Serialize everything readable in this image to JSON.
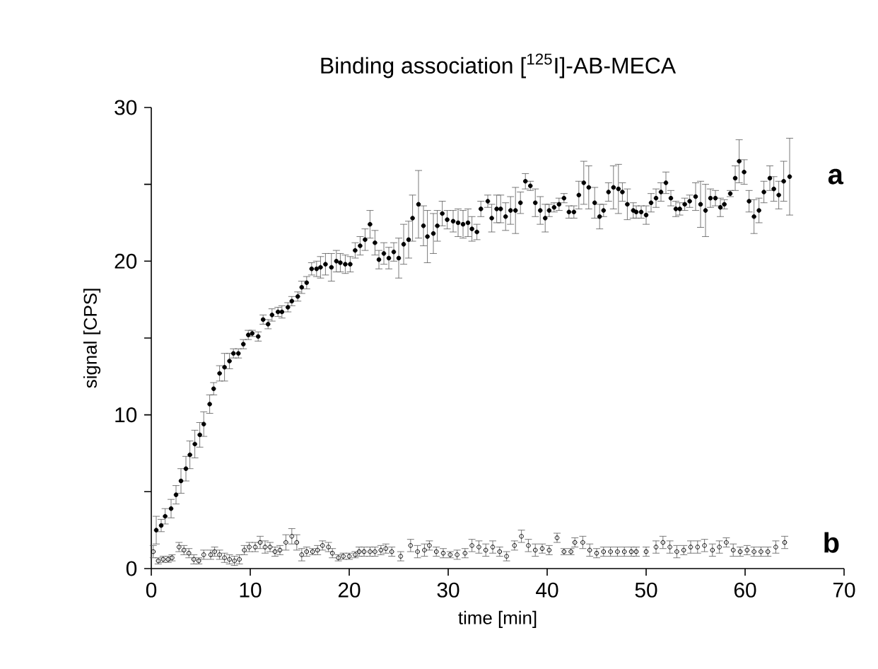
{
  "chart_data": {
    "type": "scatter",
    "title": "Binding association [$^{125}$I]-AB-MECA",
    "xlabel": "time [min]",
    "ylabel": "signal [CPS]",
    "xlim": [
      0,
      70
    ],
    "ylim": [
      0,
      30
    ],
    "xticks": [
      0,
      10,
      20,
      30,
      40,
      50,
      60,
      70
    ],
    "yticks": [
      0,
      {
        "value": 5,
        "label": null
      },
      10,
      {
        "value": 15,
        "label": null
      },
      20,
      {
        "value": 25,
        "label": null
      },
      30
    ],
    "marker": "circle",
    "grid": false,
    "legend": false,
    "series": [
      {
        "name": "a",
        "color": "#000000",
        "x": [
          0.5,
          1,
          1.4,
          2,
          2.5,
          3,
          3.5,
          3.9,
          4.4,
          4.9,
          5.3,
          5.9,
          6.3,
          6.9,
          7.4,
          7.9,
          8.3,
          8.8,
          9.3,
          9.8,
          10.2,
          10.8,
          11.3,
          11.8,
          12.2,
          12.8,
          13.2,
          13.8,
          14.2,
          14.8,
          15.2,
          15.7,
          16.2,
          16.7,
          17.1,
          17.6,
          18.2,
          18.7,
          19.1,
          19.6,
          20.1,
          20.6,
          21.1,
          21.6,
          22.1,
          22.6,
          23,
          23.5,
          24,
          24.5,
          25,
          25.5,
          26,
          26.4,
          27,
          27.5,
          27.9,
          28.5,
          28.9,
          29.4,
          29.9,
          30.5,
          31,
          31.5,
          32,
          32.4,
          32.9,
          33.3,
          34,
          34.4,
          34.9,
          35.3,
          35.8,
          36.3,
          36.8,
          37.3,
          37.8,
          38.3,
          38.8,
          39.3,
          39.8,
          40.2,
          40.7,
          41.2,
          41.7,
          42.2,
          42.7,
          43.2,
          43.7,
          44.2,
          44.8,
          45.3,
          45.7,
          46.2,
          46.7,
          47.2,
          47.6,
          48.1,
          48.7,
          49,
          49.5,
          50,
          50.5,
          51,
          51.5,
          52,
          52.5,
          53,
          53.4,
          53.9,
          54.4,
          55,
          55.5,
          56,
          56.5,
          57,
          57.5,
          57.9,
          58.5,
          59,
          59.4,
          59.9,
          60.4,
          60.9,
          61.4,
          61.9,
          62.5,
          62.9,
          63.4,
          63.9,
          64.5
        ],
        "values": [
          2.5,
          2.8,
          3.4,
          3.9,
          4.8,
          5.7,
          6.5,
          7.4,
          8.1,
          8.7,
          9.4,
          10.7,
          11.7,
          12.7,
          13.1,
          13.5,
          14,
          14,
          14.6,
          15.2,
          15.3,
          15.1,
          16.2,
          15.9,
          16.5,
          16.7,
          16.7,
          17,
          17.4,
          17.7,
          18.3,
          18.6,
          19.5,
          19.5,
          19.6,
          19.8,
          19.6,
          20,
          19.9,
          19.8,
          19.8,
          20.7,
          21,
          21.4,
          22.4,
          21.2,
          20.1,
          20.5,
          20.2,
          20.6,
          20.2,
          21.1,
          21.4,
          22.8,
          23.7,
          22.3,
          21.6,
          21.8,
          22.3,
          23.1,
          22.7,
          22.6,
          22.5,
          22.4,
          22.5,
          22.1,
          21.9,
          23.4,
          23.9,
          22.8,
          23.4,
          23.4,
          22.9,
          23.3,
          23.3,
          23.8,
          25.2,
          24.9,
          23.8,
          23.3,
          22.8,
          23.3,
          23.5,
          23.7,
          24.1,
          23.2,
          23.2,
          24.3,
          25.1,
          24.8,
          23.8,
          22.9,
          23.3,
          24.5,
          24.8,
          24.7,
          24.5,
          23.7,
          23.3,
          23.2,
          23.2,
          23,
          23.8,
          24.1,
          24.5,
          25.1,
          24.1,
          23.4,
          23.4,
          23.7,
          23.9,
          24.2,
          23.7,
          23.3,
          24.1,
          24.1,
          23.5,
          23.7,
          24.4,
          25.4,
          26.5,
          25.8,
          23.9,
          22.9,
          23.3,
          24.5,
          25.4,
          24.7,
          24.3,
          25.2,
          25.5
        ],
        "errors": [
          0.9,
          0.4,
          0.5,
          0.6,
          0.6,
          0.8,
          0.8,
          0.9,
          0.9,
          0.8,
          0.8,
          0.6,
          0.4,
          0.5,
          0.9,
          0.5,
          0.3,
          0.3,
          0.3,
          0.3,
          0.2,
          0.3,
          0.3,
          0.3,
          0.4,
          0.3,
          0.4,
          0.3,
          0.3,
          0.3,
          0.4,
          0.4,
          0.4,
          0.5,
          0.7,
          0.7,
          0.9,
          0.7,
          0.6,
          0.6,
          0.5,
          0.5,
          0.6,
          0.7,
          0.9,
          0.8,
          0.6,
          0.7,
          0.7,
          0.6,
          1.3,
          1.3,
          1.2,
          1.5,
          2.2,
          1.3,
          1.7,
          1.3,
          1.0,
          0.8,
          0.6,
          0.7,
          0.9,
          0.9,
          0.9,
          0.8,
          0.5,
          0.5,
          0.4,
          0.9,
          0.9,
          0.9,
          0.9,
          0.9,
          1.5,
          0.7,
          0.5,
          0.3,
          0.9,
          0.9,
          0.9,
          0.4,
          0.3,
          0.4,
          0.3,
          0.4,
          0.4,
          0.9,
          1.4,
          1.4,
          1.0,
          0.8,
          0.4,
          0.6,
          1.4,
          1.6,
          0.6,
          1.0,
          0.5,
          0.4,
          0.4,
          0.6,
          0.6,
          0.6,
          0.6,
          0.7,
          0.5,
          0.5,
          0.4,
          0.4,
          0.4,
          0.9,
          1.5,
          1.7,
          0.6,
          0.5,
          0.6,
          0.3,
          0.2,
          0.8,
          1.4,
          0.8,
          0.7,
          1.1,
          0.8,
          0.7,
          0.8,
          0.8,
          0.9,
          1.3,
          2.5
        ]
      },
      {
        "name": "b",
        "color": "#000000",
        "x": [
          0.2,
          0.7,
          1.2,
          1.7,
          2.1,
          2.8,
          3.3,
          3.8,
          4.3,
          4.8,
          5.3,
          6,
          6.4,
          6.9,
          7.4,
          7.9,
          8.4,
          8.9,
          9.4,
          9.9,
          10.5,
          11,
          11.5,
          12,
          12.5,
          13,
          13.6,
          14.2,
          14.7,
          15.2,
          15.7,
          16.3,
          16.8,
          17.3,
          17.9,
          18.3,
          18.9,
          19.4,
          20,
          20.6,
          21,
          21.5,
          22.1,
          22.6,
          23.2,
          23.7,
          24.3,
          25.2,
          26.2,
          26.9,
          27.6,
          28.1,
          28.8,
          29.5,
          30.2,
          30.9,
          31.7,
          32.4,
          33.1,
          33.8,
          34.5,
          35.2,
          35.9,
          36.7,
          37.4,
          38.1,
          38.8,
          39.5,
          40.2,
          41,
          41.7,
          42.4,
          42.8,
          43.6,
          44.3,
          45,
          45.7,
          46.4,
          47.1,
          47.8,
          48.5,
          49,
          50,
          51,
          51.7,
          52.4,
          53.1,
          53.8,
          54.5,
          55.2,
          55.9,
          56.7,
          57.4,
          58.1,
          58.8,
          59.5,
          60.2,
          60.9,
          61.6,
          62.3,
          63.1,
          64
        ],
        "values": [
          1.1,
          0.5,
          0.6,
          0.6,
          0.7,
          1.4,
          1.2,
          1,
          0.6,
          0.5,
          0.9,
          0.9,
          1.1,
          0.9,
          0.7,
          0.6,
          0.5,
          0.6,
          1.2,
          1.4,
          1.4,
          1.7,
          1.4,
          1.4,
          1.1,
          1.2,
          1.7,
          2.1,
          1.7,
          0.9,
          1.1,
          1.1,
          1.2,
          1.5,
          1.4,
          1,
          0.7,
          0.8,
          0.8,
          0.9,
          1.1,
          1.1,
          1.1,
          1.1,
          1.2,
          1.3,
          1.1,
          0.8,
          1.5,
          1.1,
          1.2,
          1.5,
          1.1,
          1,
          0.9,
          0.9,
          1,
          1.5,
          1.4,
          1.2,
          1.4,
          1.1,
          0.8,
          1.5,
          2.1,
          1.5,
          1.2,
          1.3,
          1.2,
          2,
          1.1,
          1.1,
          1.7,
          1.7,
          1.2,
          1,
          1.1,
          1.1,
          1.1,
          1.1,
          1.1,
          1.1,
          1.1,
          1.4,
          1.7,
          1.4,
          1.1,
          1.2,
          1.4,
          1.4,
          1.5,
          1.2,
          1.4,
          1.7,
          1.2,
          1.1,
          1.2,
          1.1,
          1.1,
          1.1,
          1.4,
          1.7
        ],
        "errors": [
          0.4,
          0.2,
          0.2,
          0.2,
          0.2,
          0.3,
          0.3,
          0.3,
          0.3,
          0.2,
          0.3,
          0.3,
          0.3,
          0.3,
          0.3,
          0.3,
          0.3,
          0.3,
          0.3,
          0.3,
          0.3,
          0.4,
          0.4,
          0.3,
          0.3,
          0.3,
          0.5,
          0.5,
          0.5,
          0.4,
          0.3,
          0.2,
          0.3,
          0.3,
          0.3,
          0.3,
          0.2,
          0.2,
          0.2,
          0.2,
          0.3,
          0.3,
          0.3,
          0.3,
          0.3,
          0.3,
          0.3,
          0.3,
          0.4,
          0.4,
          0.4,
          0.3,
          0.3,
          0.3,
          0.2,
          0.3,
          0.3,
          0.4,
          0.4,
          0.4,
          0.4,
          0.3,
          0.3,
          0.3,
          0.4,
          0.4,
          0.4,
          0.3,
          0.3,
          0.3,
          0.2,
          0.2,
          0.3,
          0.4,
          0.4,
          0.3,
          0.3,
          0.3,
          0.3,
          0.3,
          0.3,
          0.3,
          0.3,
          0.4,
          0.4,
          0.4,
          0.4,
          0.3,
          0.4,
          0.4,
          0.4,
          0.4,
          0.4,
          0.3,
          0.4,
          0.3,
          0.3,
          0.3,
          0.3,
          0.3,
          0.4,
          0.4
        ]
      }
    ]
  }
}
